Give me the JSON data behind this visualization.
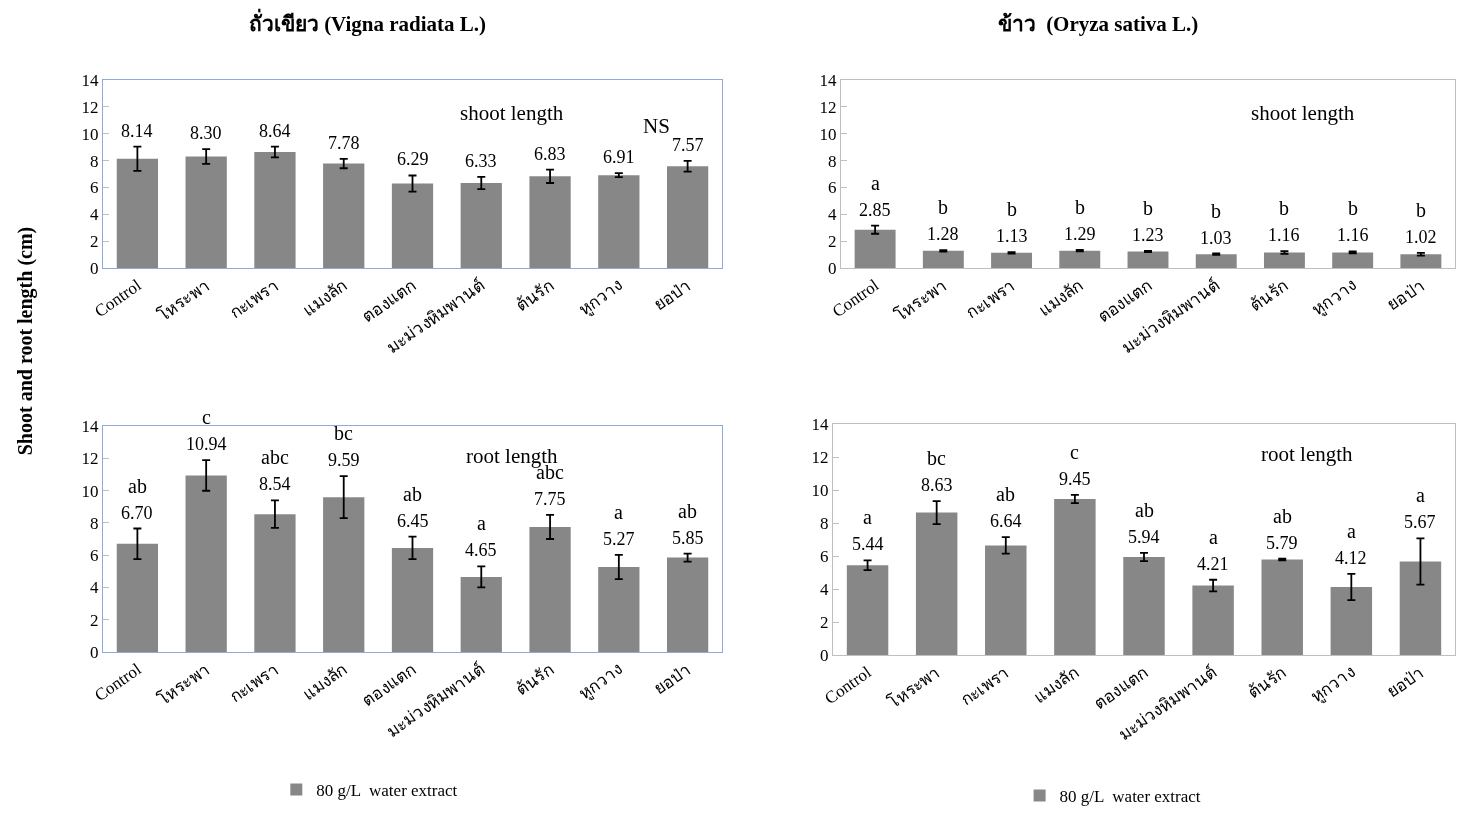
{
  "chart_data": [
    {
      "type": "bar",
      "title": "ถั่วเขียว (Vigna radiata L.)",
      "ylabel": "Shoot  and root length (cm)",
      "categories": [
        "Control",
        "โหระพา",
        "กะเพรา",
        "แมงลัก",
        "ตองแตก",
        "มะม่วงหิมพานต์",
        "ต้นรัก",
        "หูกวาง",
        "ยอป่า"
      ],
      "series": [
        {
          "color": "#878787",
          "values": [
            8.14,
            8.3,
            8.64,
            7.78,
            6.29,
            6.33,
            6.83,
            6.91,
            7.57
          ],
          "errors": [
            0.9,
            0.55,
            0.4,
            0.35,
            0.6,
            0.45,
            0.5,
            0.15,
            0.4
          ],
          "value_labels": [
            "8.14",
            "8.30",
            "8.64",
            "7.78",
            "6.29",
            "6.33",
            "6.83",
            "6.91",
            "7.57"
          ]
        }
      ],
      "ylim": [
        0,
        14
      ],
      "yticks": [
        0,
        2,
        4,
        6,
        8,
        10,
        12,
        14
      ],
      "grid": false,
      "legend": false,
      "annotations": [
        "shoot length",
        "NS"
      ]
    },
    {
      "type": "bar",
      "title": "ข้าว  (Oryza sativa L.)",
      "categories": [
        "Control",
        "โหระพา",
        "กะเพรา",
        "แมงลัก",
        "ตองแตก",
        "มะม่วงหิมพานต์",
        "ต้นรัก",
        "หูกวาง",
        "ยอป่า"
      ],
      "series": [
        {
          "color": "#878787",
          "values": [
            2.85,
            1.28,
            1.13,
            1.29,
            1.23,
            1.03,
            1.16,
            1.16,
            1.02
          ],
          "errors": [
            0.3,
            0.05,
            0.05,
            0.05,
            0.05,
            0.05,
            0.1,
            0.07,
            0.1
          ],
          "value_labels": [
            "2.85",
            "1.28",
            "1.13",
            "1.29",
            "1.23",
            "1.03",
            "1.16",
            "1.16",
            "1.02"
          ]
        }
      ],
      "ylim": [
        0,
        14
      ],
      "yticks": [
        0,
        2,
        4,
        6,
        8,
        10,
        12,
        14
      ],
      "grid": false,
      "legend": false,
      "annotations": [
        "shoot length",
        "a",
        "b",
        "b",
        "b",
        "b",
        "b",
        "b",
        "b",
        "b"
      ]
    },
    {
      "type": "bar",
      "categories": [
        "Control",
        "โหระพา",
        "กะเพรา",
        "แมงลัก",
        "ตองแตก",
        "มะม่วงหิมพานต์",
        "ต้นรัก",
        "หูกวาง",
        "ยอป่า"
      ],
      "series": [
        {
          "name": "80 g/L  water extract",
          "color": "#878787",
          "values": [
            6.7,
            10.94,
            8.54,
            9.59,
            6.45,
            4.65,
            7.75,
            5.27,
            5.85
          ],
          "errors": [
            0.95,
            0.95,
            0.85,
            1.3,
            0.7,
            0.65,
            0.75,
            0.75,
            0.25
          ],
          "value_labels": [
            "6.70",
            "10.94",
            "8.54",
            "9.59",
            "6.45",
            "4.65",
            "7.75",
            "5.27",
            "5.85"
          ]
        }
      ],
      "ylim": [
        0,
        14
      ],
      "yticks": [
        0,
        2,
        4,
        6,
        8,
        10,
        12,
        14
      ],
      "grid": false,
      "legend": "bottom",
      "annotations": [
        "root length",
        "ab",
        "c",
        "abc",
        "bc",
        "ab",
        "a",
        "abc",
        "a",
        "ab"
      ]
    },
    {
      "type": "bar",
      "categories": [
        "Control",
        "โหระพา",
        "กะเพรา",
        "แมงลัก",
        "ตองแตก",
        "มะม่วงหิมพานต์",
        "ต้นรัก",
        "หูกวาง",
        "ยอป่า"
      ],
      "series": [
        {
          "name": "80 g/L  water extract",
          "color": "#878787",
          "values": [
            5.44,
            8.63,
            6.64,
            9.45,
            5.94,
            4.21,
            5.79,
            4.12,
            5.67
          ],
          "errors": [
            0.3,
            0.7,
            0.5,
            0.25,
            0.25,
            0.35,
            0.05,
            0.8,
            1.4
          ],
          "value_labels": [
            "5.44",
            "8.63",
            "6.64",
            "9.45",
            "5.94",
            "4.21",
            "5.79",
            "4.12",
            "5.67"
          ]
        }
      ],
      "ylim": [
        0,
        14
      ],
      "yticks": [
        0,
        2,
        4,
        6,
        8,
        10,
        12,
        14
      ],
      "grid": false,
      "legend": "bottom",
      "annotations": [
        "root length",
        "a",
        "bc",
        "ab",
        "c",
        "ab",
        "a",
        "ab",
        "a",
        "a"
      ]
    }
  ]
}
